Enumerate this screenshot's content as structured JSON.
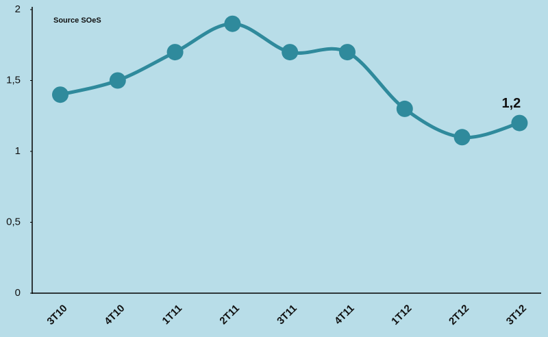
{
  "chart_data": {
    "type": "line",
    "annotation": "Source SOeS",
    "categories": [
      "3T10",
      "4T10",
      "1T11",
      "2T11",
      "3T11",
      "4T11",
      "1T12",
      "2T12",
      "3T12"
    ],
    "values": [
      1.4,
      1.5,
      1.7,
      1.9,
      1.7,
      1.7,
      1.3,
      1.1,
      1.2
    ],
    "value_labels": [
      null,
      null,
      null,
      null,
      null,
      null,
      null,
      null,
      "1,2"
    ],
    "color": "#2f8a9c",
    "ylim": [
      0,
      2
    ],
    "yticks": [
      0,
      {
        "value": 0.5,
        "label": "0,5"
      },
      1,
      {
        "value": 1.5,
        "label": "1,5"
      },
      2
    ],
    "smooth": true
  }
}
